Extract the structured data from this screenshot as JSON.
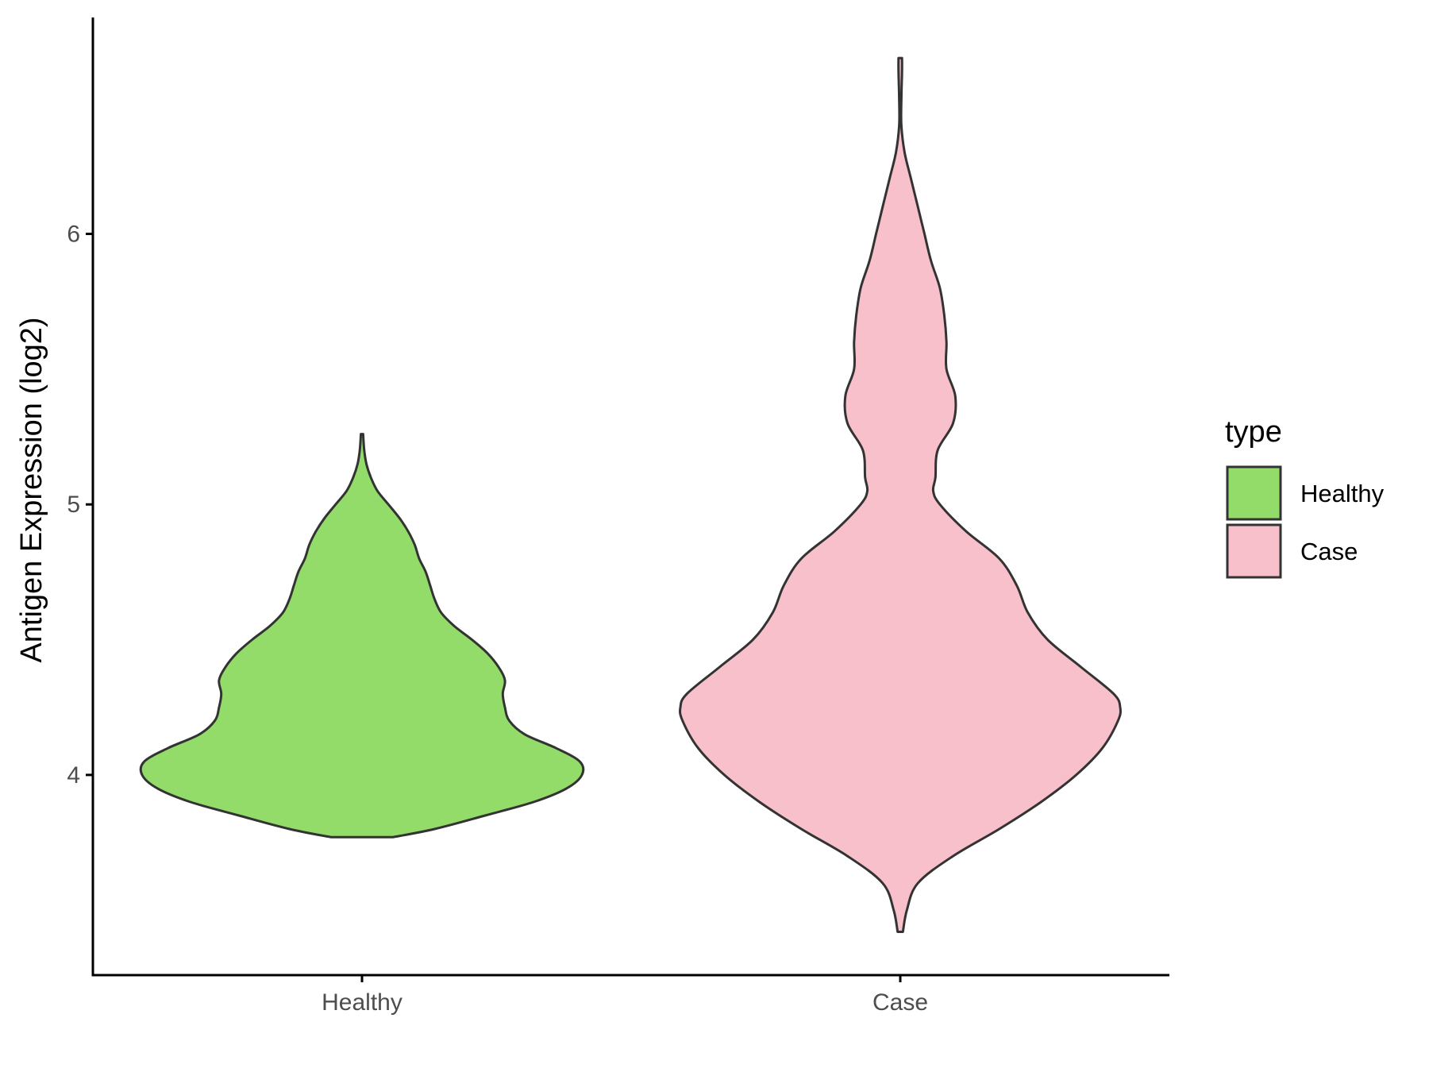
{
  "chart_data": {
    "type": "violin",
    "title": "",
    "xlabel": "",
    "ylabel": "Antigen Expression (log2)",
    "categories": [
      "Healthy",
      "Case"
    ],
    "ylim": [
      3.26,
      6.8
    ],
    "yticks": [
      4,
      5,
      6
    ],
    "grid": false,
    "legend": {
      "title": "type",
      "position": "right",
      "entries": [
        {
          "label": "Healthy",
          "color": "#93DC6A"
        },
        {
          "label": "Case",
          "color": "#F8C0CB"
        }
      ]
    },
    "series": [
      {
        "category": "Healthy",
        "color": "#93DC6A",
        "range": [
          3.77,
          5.26
        ],
        "profile": [
          [
            3.77,
            0.14
          ],
          [
            3.8,
            0.33
          ],
          [
            3.85,
            0.56
          ],
          [
            3.9,
            0.78
          ],
          [
            3.95,
            0.93
          ],
          [
            4.0,
            1.0
          ],
          [
            4.05,
            0.99
          ],
          [
            4.1,
            0.88
          ],
          [
            4.15,
            0.74
          ],
          [
            4.2,
            0.67
          ],
          [
            4.25,
            0.65
          ],
          [
            4.3,
            0.64
          ],
          [
            4.35,
            0.65
          ],
          [
            4.4,
            0.62
          ],
          [
            4.45,
            0.57
          ],
          [
            4.5,
            0.5
          ],
          [
            4.55,
            0.42
          ],
          [
            4.6,
            0.36
          ],
          [
            4.65,
            0.33
          ],
          [
            4.7,
            0.31
          ],
          [
            4.75,
            0.29
          ],
          [
            4.8,
            0.26
          ],
          [
            4.85,
            0.24
          ],
          [
            4.9,
            0.21
          ],
          [
            4.95,
            0.17
          ],
          [
            5.0,
            0.12
          ],
          [
            5.05,
            0.07
          ],
          [
            5.1,
            0.04
          ],
          [
            5.15,
            0.02
          ],
          [
            5.2,
            0.01
          ],
          [
            5.26,
            0.005
          ]
        ]
      },
      {
        "category": "Case",
        "color": "#F8C0CB",
        "range": [
          3.42,
          6.65
        ],
        "profile": [
          [
            3.42,
            0.012
          ],
          [
            3.5,
            0.03
          ],
          [
            3.6,
            0.08
          ],
          [
            3.7,
            0.24
          ],
          [
            3.8,
            0.45
          ],
          [
            3.9,
            0.64
          ],
          [
            4.0,
            0.8
          ],
          [
            4.1,
            0.92
          ],
          [
            4.2,
            0.99
          ],
          [
            4.25,
            1.0
          ],
          [
            4.3,
            0.97
          ],
          [
            4.4,
            0.82
          ],
          [
            4.5,
            0.67
          ],
          [
            4.6,
            0.58
          ],
          [
            4.7,
            0.53
          ],
          [
            4.8,
            0.45
          ],
          [
            4.9,
            0.3
          ],
          [
            5.0,
            0.18
          ],
          [
            5.05,
            0.15
          ],
          [
            5.1,
            0.16
          ],
          [
            5.2,
            0.17
          ],
          [
            5.3,
            0.24
          ],
          [
            5.4,
            0.25
          ],
          [
            5.5,
            0.21
          ],
          [
            5.6,
            0.21
          ],
          [
            5.7,
            0.2
          ],
          [
            5.8,
            0.18
          ],
          [
            5.9,
            0.14
          ],
          [
            6.0,
            0.11
          ],
          [
            6.1,
            0.08
          ],
          [
            6.2,
            0.05
          ],
          [
            6.3,
            0.02
          ],
          [
            6.4,
            0.005
          ],
          [
            6.5,
            0.005
          ],
          [
            6.6,
            0.008
          ],
          [
            6.65,
            0.008
          ]
        ]
      }
    ]
  }
}
